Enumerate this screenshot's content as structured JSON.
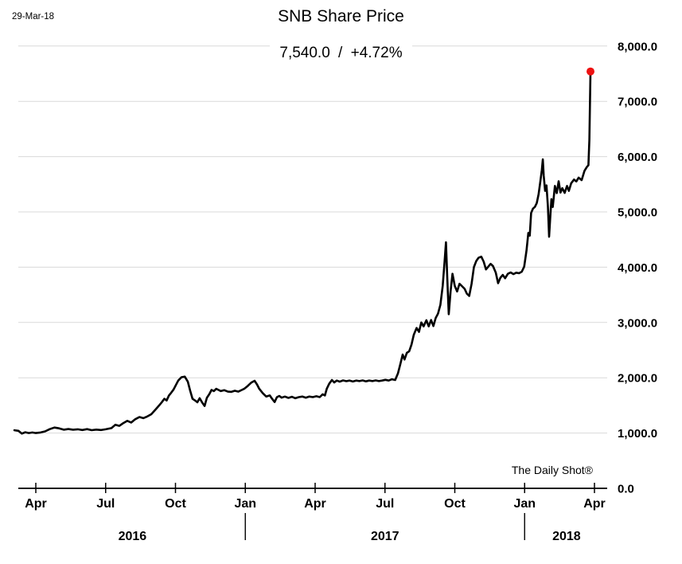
{
  "date_label": "29-Mar-18",
  "credit": "The Daily Shot®",
  "chart_data": {
    "type": "line",
    "title": "SNB Share Price",
    "subtitle": "7,540.0 / +4.72%",
    "last_price": 7540.0,
    "change_percent": "+4.72%",
    "grid": true,
    "legend": "none",
    "colors": {
      "line": "#000000",
      "marker": "#ee1111",
      "grid": "#d9d9d9",
      "axis": "#000000",
      "text": "#000000"
    },
    "x_axis": {
      "unit": "months, 0 = Apr 2016 tick",
      "range_months": [
        -1.0,
        24.6
      ],
      "tick_months": [
        0,
        3,
        6,
        9,
        12,
        15,
        18,
        21,
        24
      ],
      "tick_labels": [
        "Apr",
        "Jul",
        "Oct",
        "Jan",
        "Apr",
        "Jul",
        "Oct",
        "Jan",
        "Apr"
      ],
      "year_divider_months": [
        9,
        21
      ],
      "years": [
        {
          "label": "2016",
          "center_month": 4.15
        },
        {
          "label": "2017",
          "center_month": 15.0
        },
        {
          "label": "2018",
          "center_month": 22.8
        }
      ]
    },
    "y_axis": {
      "side": "right",
      "range": [
        0,
        8000
      ],
      "ticks": [
        0,
        1000,
        2000,
        3000,
        4000,
        5000,
        6000,
        7000,
        8000
      ],
      "tick_labels": [
        "0.0",
        "1,000.0",
        "2,000.0",
        "3,000.0",
        "4,000.0",
        "5,000.0",
        "6,000.0",
        "7,000.0",
        "8,000.0"
      ]
    },
    "end_marker": {
      "month": 23.83,
      "value": 7540
    },
    "series": [
      {
        "name": "SNB Share Price",
        "points": [
          [
            -0.92,
            1050
          ],
          [
            -0.75,
            1040
          ],
          [
            -0.6,
            990
          ],
          [
            -0.45,
            1015
          ],
          [
            -0.3,
            1000
          ],
          [
            -0.15,
            1010
          ],
          [
            0,
            1000
          ],
          [
            0.2,
            1010
          ],
          [
            0.4,
            1030
          ],
          [
            0.6,
            1070
          ],
          [
            0.8,
            1100
          ],
          [
            1.0,
            1085
          ],
          [
            1.2,
            1060
          ],
          [
            1.4,
            1072
          ],
          [
            1.6,
            1060
          ],
          [
            1.8,
            1068
          ],
          [
            2.0,
            1055
          ],
          [
            2.2,
            1070
          ],
          [
            2.4,
            1052
          ],
          [
            2.6,
            1062
          ],
          [
            2.8,
            1055
          ],
          [
            3.0,
            1068
          ],
          [
            3.25,
            1090
          ],
          [
            3.42,
            1150
          ],
          [
            3.59,
            1130
          ],
          [
            3.76,
            1180
          ],
          [
            3.93,
            1220
          ],
          [
            4.1,
            1190
          ],
          [
            4.27,
            1250
          ],
          [
            4.45,
            1290
          ],
          [
            4.62,
            1270
          ],
          [
            4.79,
            1300
          ],
          [
            4.96,
            1340
          ],
          [
            5.13,
            1420
          ],
          [
            5.3,
            1500
          ],
          [
            5.42,
            1560
          ],
          [
            5.52,
            1620
          ],
          [
            5.62,
            1590
          ],
          [
            5.72,
            1680
          ],
          [
            5.82,
            1730
          ],
          [
            5.92,
            1790
          ],
          [
            6.02,
            1870
          ],
          [
            6.12,
            1950
          ],
          [
            6.26,
            2010
          ],
          [
            6.4,
            2020
          ],
          [
            6.53,
            1930
          ],
          [
            6.63,
            1770
          ],
          [
            6.73,
            1620
          ],
          [
            6.87,
            1580
          ],
          [
            6.94,
            1556
          ],
          [
            7.04,
            1630
          ],
          [
            7.15,
            1550
          ],
          [
            7.25,
            1490
          ],
          [
            7.35,
            1640
          ],
          [
            7.45,
            1700
          ],
          [
            7.55,
            1780
          ],
          [
            7.65,
            1760
          ],
          [
            7.75,
            1800
          ],
          [
            7.85,
            1780
          ],
          [
            7.95,
            1760
          ],
          [
            8.1,
            1775
          ],
          [
            8.25,
            1750
          ],
          [
            8.4,
            1745
          ],
          [
            8.55,
            1765
          ],
          [
            8.7,
            1750
          ],
          [
            8.85,
            1780
          ],
          [
            8.95,
            1800
          ],
          [
            9.1,
            1850
          ],
          [
            9.25,
            1910
          ],
          [
            9.4,
            1945
          ],
          [
            9.5,
            1880
          ],
          [
            9.6,
            1800
          ],
          [
            9.75,
            1720
          ],
          [
            9.9,
            1660
          ],
          [
            10.05,
            1680
          ],
          [
            10.15,
            1620
          ],
          [
            10.26,
            1560
          ],
          [
            10.36,
            1650
          ],
          [
            10.46,
            1670
          ],
          [
            10.56,
            1640
          ],
          [
            10.7,
            1660
          ],
          [
            10.85,
            1635
          ],
          [
            11.0,
            1655
          ],
          [
            11.15,
            1630
          ],
          [
            11.3,
            1650
          ],
          [
            11.45,
            1660
          ],
          [
            11.6,
            1640
          ],
          [
            11.75,
            1660
          ],
          [
            11.9,
            1650
          ],
          [
            12.05,
            1665
          ],
          [
            12.2,
            1650
          ],
          [
            12.32,
            1700
          ],
          [
            12.42,
            1680
          ],
          [
            12.5,
            1800
          ],
          [
            12.6,
            1890
          ],
          [
            12.72,
            1960
          ],
          [
            12.82,
            1915
          ],
          [
            12.93,
            1950
          ],
          [
            13.06,
            1930
          ],
          [
            13.2,
            1952
          ],
          [
            13.34,
            1938
          ],
          [
            13.48,
            1950
          ],
          [
            13.62,
            1932
          ],
          [
            13.76,
            1950
          ],
          [
            13.9,
            1940
          ],
          [
            14.04,
            1952
          ],
          [
            14.18,
            1935
          ],
          [
            14.32,
            1950
          ],
          [
            14.46,
            1940
          ],
          [
            14.6,
            1952
          ],
          [
            14.74,
            1940
          ],
          [
            14.88,
            1950
          ],
          [
            15.02,
            1962
          ],
          [
            15.16,
            1950
          ],
          [
            15.3,
            1972
          ],
          [
            15.44,
            1960
          ],
          [
            15.56,
            2080
          ],
          [
            15.66,
            2250
          ],
          [
            15.76,
            2420
          ],
          [
            15.84,
            2330
          ],
          [
            15.94,
            2450
          ],
          [
            16.04,
            2480
          ],
          [
            16.14,
            2600
          ],
          [
            16.24,
            2780
          ],
          [
            16.36,
            2900
          ],
          [
            16.46,
            2830
          ],
          [
            16.56,
            3000
          ],
          [
            16.66,
            2930
          ],
          [
            16.78,
            3040
          ],
          [
            16.88,
            2930
          ],
          [
            16.98,
            3045
          ],
          [
            17.08,
            2935
          ],
          [
            17.18,
            3080
          ],
          [
            17.28,
            3160
          ],
          [
            17.38,
            3320
          ],
          [
            17.48,
            3660
          ],
          [
            17.56,
            4090
          ],
          [
            17.62,
            4450
          ],
          [
            17.68,
            3780
          ],
          [
            17.74,
            3150
          ],
          [
            17.82,
            3560
          ],
          [
            17.9,
            3880
          ],
          [
            18.0,
            3660
          ],
          [
            18.1,
            3560
          ],
          [
            18.2,
            3700
          ],
          [
            18.3,
            3660
          ],
          [
            18.42,
            3610
          ],
          [
            18.52,
            3520
          ],
          [
            18.62,
            3480
          ],
          [
            18.72,
            3700
          ],
          [
            18.82,
            4000
          ],
          [
            18.92,
            4110
          ],
          [
            19.02,
            4170
          ],
          [
            19.14,
            4190
          ],
          [
            19.24,
            4100
          ],
          [
            19.34,
            3960
          ],
          [
            19.44,
            4010
          ],
          [
            19.54,
            4060
          ],
          [
            19.64,
            4020
          ],
          [
            19.76,
            3900
          ],
          [
            19.86,
            3710
          ],
          [
            19.96,
            3810
          ],
          [
            20.06,
            3860
          ],
          [
            20.16,
            3800
          ],
          [
            20.28,
            3880
          ],
          [
            20.4,
            3905
          ],
          [
            20.52,
            3875
          ],
          [
            20.64,
            3900
          ],
          [
            20.76,
            3890
          ],
          [
            20.88,
            3920
          ],
          [
            20.98,
            4010
          ],
          [
            21.08,
            4300
          ],
          [
            21.16,
            4620
          ],
          [
            21.22,
            4570
          ],
          [
            21.28,
            4980
          ],
          [
            21.36,
            5060
          ],
          [
            21.44,
            5090
          ],
          [
            21.52,
            5160
          ],
          [
            21.6,
            5320
          ],
          [
            21.68,
            5560
          ],
          [
            21.74,
            5760
          ],
          [
            21.78,
            5950
          ],
          [
            21.82,
            5660
          ],
          [
            21.88,
            5380
          ],
          [
            21.94,
            5480
          ],
          [
            22.0,
            5100
          ],
          [
            22.05,
            4550
          ],
          [
            22.1,
            4890
          ],
          [
            22.15,
            5230
          ],
          [
            22.21,
            5090
          ],
          [
            22.3,
            5470
          ],
          [
            22.38,
            5340
          ],
          [
            22.46,
            5555
          ],
          [
            22.54,
            5350
          ],
          [
            22.62,
            5430
          ],
          [
            22.72,
            5345
          ],
          [
            22.82,
            5470
          ],
          [
            22.9,
            5380
          ],
          [
            23.0,
            5520
          ],
          [
            23.12,
            5585
          ],
          [
            23.22,
            5550
          ],
          [
            23.32,
            5620
          ],
          [
            23.45,
            5575
          ],
          [
            23.57,
            5740
          ],
          [
            23.67,
            5810
          ],
          [
            23.74,
            5845
          ],
          [
            23.78,
            6300
          ],
          [
            23.83,
            7540
          ]
        ]
      }
    ]
  }
}
